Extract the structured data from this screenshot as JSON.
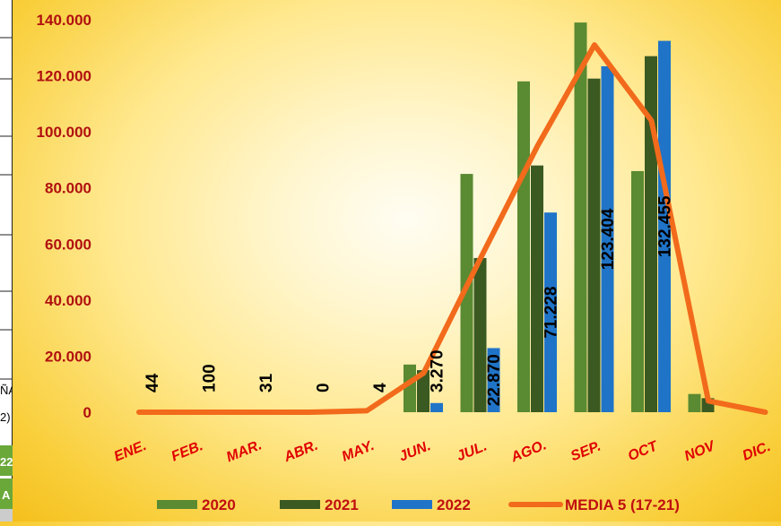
{
  "left_panel_fragments": {
    "text_a": "ÑA",
    "text_b": "2)",
    "text_c": "22",
    "text_d": "A"
  },
  "chart_data": {
    "type": "bar",
    "title": "",
    "xlabel": "",
    "ylabel": "",
    "categories": [
      "ENE.",
      "FEB.",
      "MAR.",
      "ABR.",
      "MAY.",
      "JUN.",
      "JUL.",
      "AGO.",
      "SEP.",
      "OCT",
      "NOV",
      "DIC."
    ],
    "ylim": [
      0,
      140000
    ],
    "yticks": [
      0,
      20000,
      40000,
      60000,
      80000,
      100000,
      120000,
      140000
    ],
    "ytick_labels": [
      "0",
      "20.000",
      "40.000",
      "60.000",
      "80.000",
      "100.000",
      "120.000",
      "140.000"
    ],
    "grid": false,
    "legend_position": "bottom",
    "series": [
      {
        "name": "2020",
        "type": "bar",
        "color": "#5a8a32",
        "values": [
          0,
          0,
          0,
          0,
          0,
          17000,
          85000,
          118000,
          139000,
          86000,
          6500,
          0
        ]
      },
      {
        "name": "2021",
        "type": "bar",
        "color": "#3a5a22",
        "values": [
          0,
          0,
          0,
          0,
          0,
          15000,
          55000,
          88000,
          119000,
          127000,
          5000,
          0
        ]
      },
      {
        "name": "2022",
        "type": "bar",
        "color": "#1f74c8",
        "values": [
          44,
          100,
          31,
          0,
          4,
          3270,
          22870,
          71228,
          123404,
          132455,
          null,
          null
        ],
        "data_labels": [
          "44",
          "100",
          "31",
          "0",
          "4",
          "3.270",
          "22.870",
          "71.228",
          "123.404",
          "132.455"
        ]
      },
      {
        "name": "MEDIA 5 (17-21)",
        "type": "line",
        "color": "#f26a1b",
        "values": [
          0,
          0,
          0,
          0,
          500,
          14000,
          55000,
          95000,
          131000,
          104000,
          4000,
          0
        ]
      }
    ]
  }
}
